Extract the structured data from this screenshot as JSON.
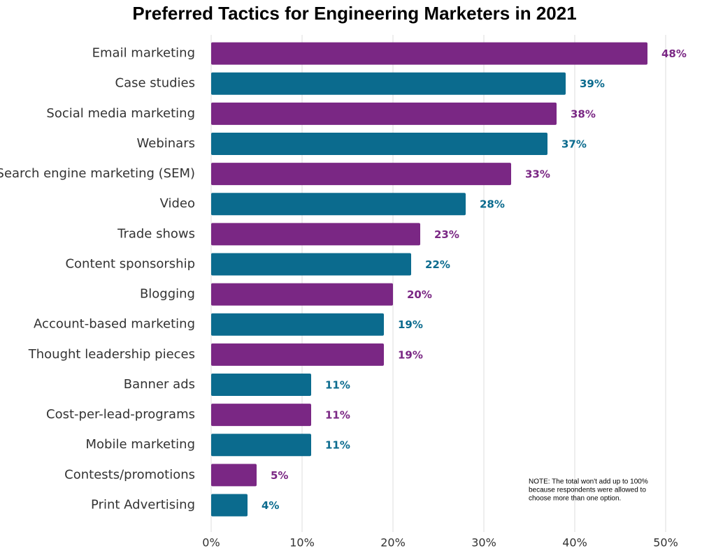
{
  "chart_data": {
    "type": "hbar",
    "title": "Preferred Tactics for Engineering Marketers in 2021",
    "categories": [
      "Email marketing",
      "Case studies",
      "Social media marketing",
      "Webinars",
      "Search engine marketing (SEM)",
      "Video",
      "Trade shows",
      "Content sponsorship",
      "Blogging",
      "Account-based marketing",
      "Thought leadership pieces",
      "Banner ads",
      "Cost-per-lead-programs",
      "Mobile marketing",
      "Contests/promotions",
      "Print Advertising"
    ],
    "values": [
      48,
      39,
      38,
      37,
      33,
      28,
      23,
      22,
      20,
      19,
      19,
      11,
      11,
      11,
      5,
      4
    ],
    "value_labels": [
      "48%",
      "39%",
      "38%",
      "37%",
      "33%",
      "28%",
      "23%",
      "22%",
      "20%",
      "19%",
      "19%",
      "11%",
      "11%",
      "11%",
      "5%",
      "4%"
    ],
    "colors": [
      "#7a2784",
      "#0b6b8e",
      "#7a2784",
      "#0b6b8e",
      "#7a2784",
      "#0b6b8e",
      "#7a2784",
      "#0b6b8e",
      "#7a2784",
      "#0b6b8e",
      "#7a2784",
      "#0b6b8e",
      "#7a2784",
      "#0b6b8e",
      "#7a2784",
      "#0b6b8e"
    ],
    "xlim": [
      0,
      50
    ],
    "xticks": [
      {
        "value": 0,
        "label": "0%"
      },
      {
        "value": 10,
        "label": "10%"
      },
      {
        "value": 20,
        "label": "20%"
      },
      {
        "value": 30,
        "label": "30%"
      },
      {
        "value": 40,
        "label": "40%"
      },
      {
        "value": 50,
        "label": "50%"
      }
    ],
    "grid": true,
    "note": [
      "NOTE: The total won't add up to 100%",
      "because respondents were allowed to",
      "choose more than one option."
    ]
  }
}
